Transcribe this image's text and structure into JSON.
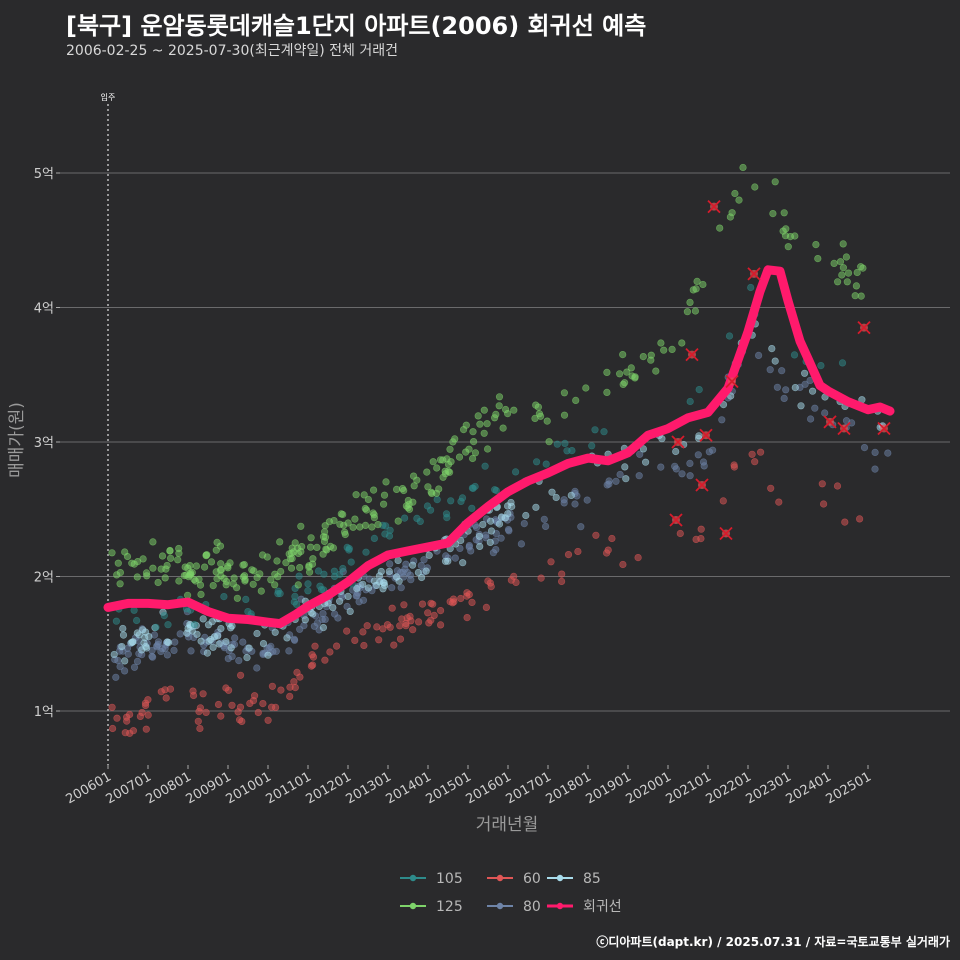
{
  "title": "[북구] 운암동롯데캐슬1단지 아파트(2006) 회귀선 예측",
  "subtitle": "2006-02-25 ~ 2025-07-30(최근계약일) 전체 거래건",
  "footer": "ⓒ디아파트(dapt.kr) / 2025.07.31 / 자료=국토교통부 실거래가",
  "chart_data": {
    "type": "scatter",
    "xlabel": "거래년월",
    "ylabel": "매매가(원)",
    "ylim": [
      0.65,
      5.75
    ],
    "xlim": [
      2005.9,
      2025.95
    ],
    "x_ticks": [
      "200601",
      "200701",
      "200801",
      "200901",
      "201001",
      "201101",
      "201201",
      "201301",
      "201401",
      "201501",
      "201601",
      "201701",
      "201801",
      "201901",
      "202001",
      "202101",
      "202201",
      "202301",
      "202401",
      "202501"
    ],
    "y_ticks": [
      {
        "value": 1,
        "label": "1억"
      },
      {
        "value": 2,
        "label": "2억"
      },
      {
        "value": 3,
        "label": "3억"
      },
      {
        "value": 4,
        "label": "4억"
      },
      {
        "value": 5,
        "label": "5억"
      }
    ],
    "annotation": {
      "x": 2006.0,
      "label": "입주"
    },
    "series": [
      {
        "name": "105",
        "color": "#2e8b8b"
      },
      {
        "name": "125",
        "color": "#7ed36a"
      },
      {
        "name": "60",
        "color": "#e05656"
      },
      {
        "name": "80",
        "color": "#6e84a8"
      },
      {
        "name": "85",
        "color": "#a8dcec"
      },
      {
        "name": "회귀선",
        "color": "#ff1a6c"
      }
    ],
    "regression": [
      [
        2006.0,
        1.77
      ],
      [
        2006.5,
        1.8
      ],
      [
        2007.0,
        1.8
      ],
      [
        2007.5,
        1.79
      ],
      [
        2008.0,
        1.81
      ],
      [
        2008.5,
        1.74
      ],
      [
        2009.0,
        1.69
      ],
      [
        2009.5,
        1.68
      ],
      [
        2010.0,
        1.66
      ],
      [
        2010.3,
        1.65
      ],
      [
        2010.7,
        1.72
      ],
      [
        2011.0,
        1.78
      ],
      [
        2011.5,
        1.86
      ],
      [
        2012.0,
        1.96
      ],
      [
        2012.5,
        2.08
      ],
      [
        2013.0,
        2.16
      ],
      [
        2013.5,
        2.19
      ],
      [
        2014.0,
        2.22
      ],
      [
        2014.5,
        2.25
      ],
      [
        2015.0,
        2.4
      ],
      [
        2015.5,
        2.52
      ],
      [
        2016.0,
        2.63
      ],
      [
        2016.5,
        2.71
      ],
      [
        2017.0,
        2.77
      ],
      [
        2017.5,
        2.84
      ],
      [
        2018.0,
        2.88
      ],
      [
        2018.5,
        2.86
      ],
      [
        2019.0,
        2.92
      ],
      [
        2019.5,
        3.05
      ],
      [
        2020.0,
        3.1
      ],
      [
        2020.5,
        3.18
      ],
      [
        2021.0,
        3.22
      ],
      [
        2021.5,
        3.4
      ],
      [
        2022.0,
        3.82
      ],
      [
        2022.3,
        4.12
      ],
      [
        2022.5,
        4.28
      ],
      [
        2022.8,
        4.27
      ],
      [
        2023.0,
        4.05
      ],
      [
        2023.3,
        3.75
      ],
      [
        2023.5,
        3.62
      ],
      [
        2023.8,
        3.42
      ],
      [
        2024.0,
        3.38
      ],
      [
        2024.5,
        3.3
      ],
      [
        2025.0,
        3.24
      ],
      [
        2025.3,
        3.26
      ],
      [
        2025.55,
        3.23
      ]
    ],
    "anchors": {
      "60": [
        [
          2006.3,
          0.9
        ],
        [
          2008.0,
          1.1
        ],
        [
          2010.0,
          1.05
        ],
        [
          2011.0,
          1.3
        ],
        [
          2012.0,
          1.55
        ],
        [
          2013.0,
          1.65
        ],
        [
          2014.0,
          1.75
        ],
        [
          2015.0,
          1.8
        ],
        [
          2016.0,
          2.0
        ],
        [
          2017.0,
          2.1
        ],
        [
          2018.0,
          2.1
        ],
        [
          2019.0,
          2.25
        ],
        [
          2020.0,
          2.3
        ],
        [
          2021.0,
          2.4
        ],
        [
          2022.0,
          2.9
        ],
        [
          2023.0,
          2.6
        ],
        [
          2024.0,
          2.55
        ],
        [
          2025.5,
          2.4
        ]
      ],
      "80": [
        [
          2006.3,
          1.4
        ],
        [
          2008.0,
          1.55
        ],
        [
          2010.0,
          1.45
        ],
        [
          2011.0,
          1.7
        ],
        [
          2012.0,
          1.85
        ],
        [
          2013.0,
          1.95
        ],
        [
          2014.0,
          2.1
        ],
        [
          2015.0,
          2.3
        ],
        [
          2016.0,
          2.4
        ],
        [
          2017.0,
          2.45
        ],
        [
          2018.0,
          2.6
        ],
        [
          2019.0,
          2.75
        ],
        [
          2020.0,
          2.7
        ],
        [
          2021.0,
          2.9
        ],
        [
          2022.0,
          3.7
        ],
        [
          2023.0,
          3.4
        ],
        [
          2024.0,
          3.2
        ],
        [
          2025.5,
          2.9
        ]
      ],
      "85": [
        [
          2006.3,
          1.5
        ],
        [
          2008.0,
          1.6
        ],
        [
          2010.0,
          1.55
        ],
        [
          2011.0,
          1.75
        ],
        [
          2012.0,
          1.9
        ],
        [
          2013.0,
          2.0
        ],
        [
          2014.0,
          2.1
        ],
        [
          2015.0,
          2.3
        ],
        [
          2016.0,
          2.5
        ],
        [
          2017.0,
          2.6
        ],
        [
          2018.0,
          2.7
        ],
        [
          2019.0,
          2.85
        ],
        [
          2020.0,
          2.9
        ],
        [
          2021.0,
          3.0
        ],
        [
          2022.0,
          3.8
        ],
        [
          2023.0,
          3.5
        ],
        [
          2024.0,
          3.35
        ],
        [
          2025.5,
          3.2
        ]
      ],
      "105": [
        [
          2006.3,
          1.7
        ],
        [
          2008.0,
          1.75
        ],
        [
          2010.0,
          1.8
        ],
        [
          2011.0,
          1.95
        ],
        [
          2012.0,
          2.1
        ],
        [
          2013.0,
          2.3
        ],
        [
          2014.0,
          2.45
        ],
        [
          2015.0,
          2.6
        ],
        [
          2016.0,
          2.75
        ],
        [
          2017.0,
          2.9
        ],
        [
          2018.0,
          3.0
        ],
        [
          2019.0,
          3.1
        ],
        [
          2020.0,
          3.3
        ],
        [
          2021.0,
          3.5
        ],
        [
          2022.0,
          4.0
        ],
        [
          2023.0,
          3.8
        ],
        [
          2024.0,
          3.6
        ],
        [
          2025.5,
          3.5
        ]
      ],
      "125": [
        [
          2006.3,
          2.1
        ],
        [
          2008.0,
          2.05
        ],
        [
          2010.0,
          2.05
        ],
        [
          2011.0,
          2.2
        ],
        [
          2012.0,
          2.4
        ],
        [
          2013.0,
          2.55
        ],
        [
          2014.0,
          2.7
        ],
        [
          2015.0,
          3.0
        ],
        [
          2016.0,
          3.3
        ],
        [
          2017.0,
          3.2
        ],
        [
          2018.0,
          3.3
        ],
        [
          2019.0,
          3.5
        ],
        [
          2020.0,
          3.7
        ],
        [
          2021.0,
          4.3
        ],
        [
          2022.0,
          5.1
        ],
        [
          2023.0,
          4.6
        ],
        [
          2024.0,
          4.3
        ],
        [
          2025.5,
          4.2
        ]
      ]
    },
    "density": {
      "60": 140,
      "80": 240,
      "85": 170,
      "105": 90,
      "125": 280
    },
    "spread": {
      "60": 0.14,
      "80": 0.13,
      "85": 0.12,
      "105": 0.12,
      "125": 0.16
    },
    "flagged": [
      [
        2021.15,
        4.75
      ],
      [
        2022.15,
        4.25
      ],
      [
        2020.6,
        3.65
      ],
      [
        2021.6,
        3.45
      ],
      [
        2024.9,
        3.85
      ],
      [
        2020.25,
        3.0
      ],
      [
        2020.95,
        3.05
      ],
      [
        2020.85,
        2.68
      ],
      [
        2020.2,
        2.42
      ],
      [
        2021.45,
        2.32
      ],
      [
        2024.05,
        3.15
      ],
      [
        2024.4,
        3.1
      ],
      [
        2025.4,
        3.1
      ]
    ]
  }
}
